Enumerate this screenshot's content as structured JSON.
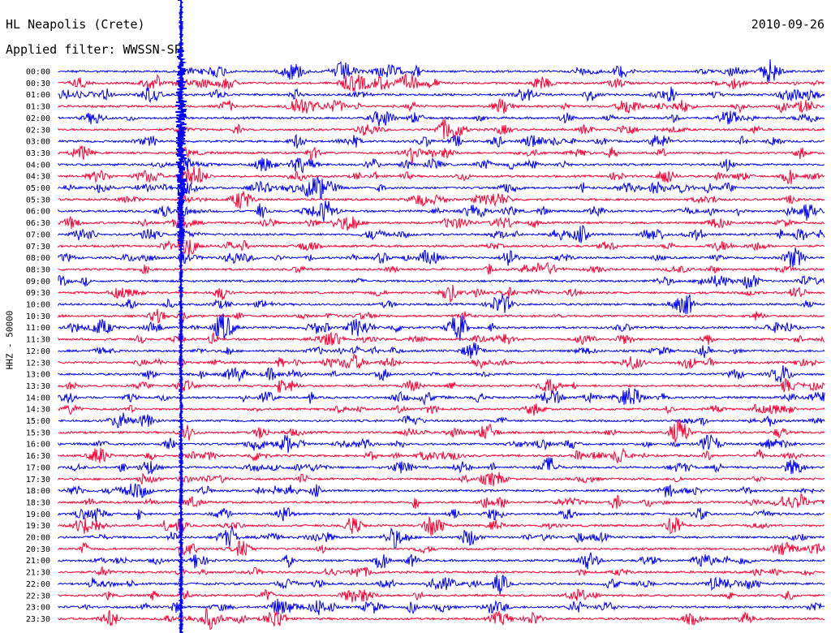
{
  "header": {
    "station": "HL Neapolis (Crete)",
    "date": "2010-09-26",
    "filter": "Applied filter: WWSSN-SP"
  },
  "chart_data": {
    "type": "line",
    "title": "HL Neapolis (Crete)",
    "subtitle": "Applied filter: WWSSN-SP",
    "ylabel": "HHZ - 50000",
    "date": "2010-09-26",
    "row_labels": [
      "00:00",
      "00:30",
      "01:00",
      "01:30",
      "02:00",
      "02:30",
      "03:00",
      "03:30",
      "04:00",
      "04:30",
      "05:00",
      "05:30",
      "06:00",
      "06:30",
      "07:00",
      "07:30",
      "08:00",
      "08:30",
      "09:00",
      "09:30",
      "10:00",
      "10:30",
      "11:00",
      "11:30",
      "12:00",
      "12:30",
      "13:00",
      "13:30",
      "14:00",
      "14:30",
      "15:00",
      "15:30",
      "16:00",
      "16:30",
      "17:00",
      "17:30",
      "18:00",
      "18:30",
      "19:00",
      "19:30",
      "20:00",
      "20:30",
      "21:00",
      "21:30",
      "22:00",
      "22:30",
      "23:00",
      "23:30"
    ],
    "row_minutes": 30,
    "colors": {
      "even_rows": "#0000ff",
      "odd_rows": "#ff0033"
    },
    "major_event": {
      "label": "04:00",
      "offset_fraction": 0.16
    },
    "bursts": [
      {
        "row": 0,
        "at": 0.93,
        "amp": 14
      },
      {
        "row": 1,
        "at": 0.38,
        "amp": 9
      },
      {
        "row": 1,
        "at": 0.46,
        "amp": 8
      },
      {
        "row": 2,
        "at": 0.12,
        "amp": 9
      },
      {
        "row": 3,
        "at": 0.31,
        "amp": 8
      },
      {
        "row": 3,
        "at": 0.58,
        "amp": 9
      },
      {
        "row": 4,
        "at": 0.42,
        "amp": 9
      },
      {
        "row": 5,
        "at": 0.52,
        "amp": 8
      },
      {
        "row": 6,
        "at": 0.62,
        "amp": 9
      },
      {
        "row": 7,
        "at": 0.03,
        "amp": 8
      },
      {
        "row": 7,
        "at": 0.46,
        "amp": 8
      },
      {
        "row": 8,
        "at": 0.27,
        "amp": 9
      },
      {
        "row": 9,
        "at": 0.18,
        "amp": 10
      },
      {
        "row": 10,
        "at": 0.34,
        "amp": 10
      },
      {
        "row": 11,
        "at": 0.24,
        "amp": 10
      },
      {
        "row": 12,
        "at": 0.35,
        "amp": 12
      },
      {
        "row": 12,
        "at": 0.98,
        "amp": 12
      },
      {
        "row": 13,
        "at": 0.38,
        "amp": 11
      },
      {
        "row": 16,
        "at": 0.96,
        "amp": 12
      },
      {
        "row": 19,
        "at": 0.51,
        "amp": 11
      },
      {
        "row": 22,
        "at": 0.52,
        "amp": 14
      },
      {
        "row": 22,
        "at": 0.39,
        "amp": 11
      },
      {
        "row": 24,
        "at": 0.54,
        "amp": 10
      },
      {
        "row": 27,
        "at": 0.64,
        "amp": 10
      },
      {
        "row": 28,
        "at": 0.75,
        "amp": 10
      },
      {
        "row": 31,
        "at": 0.56,
        "amp": 10
      },
      {
        "row": 32,
        "at": 0.85,
        "amp": 12
      },
      {
        "row": 34,
        "at": 0.96,
        "amp": 10
      },
      {
        "row": 35,
        "at": 0.57,
        "amp": 9
      },
      {
        "row": 36,
        "at": 0.1,
        "amp": 9
      },
      {
        "row": 38,
        "at": 0.05,
        "amp": 9
      },
      {
        "row": 39,
        "at": 0.05,
        "amp": 8
      },
      {
        "row": 39,
        "at": 0.49,
        "amp": 8
      },
      {
        "row": 40,
        "at": 0.22,
        "amp": 9
      },
      {
        "row": 44,
        "at": 0.3,
        "amp": 7
      },
      {
        "row": 47,
        "at": 0.28,
        "amp": 8
      }
    ]
  }
}
